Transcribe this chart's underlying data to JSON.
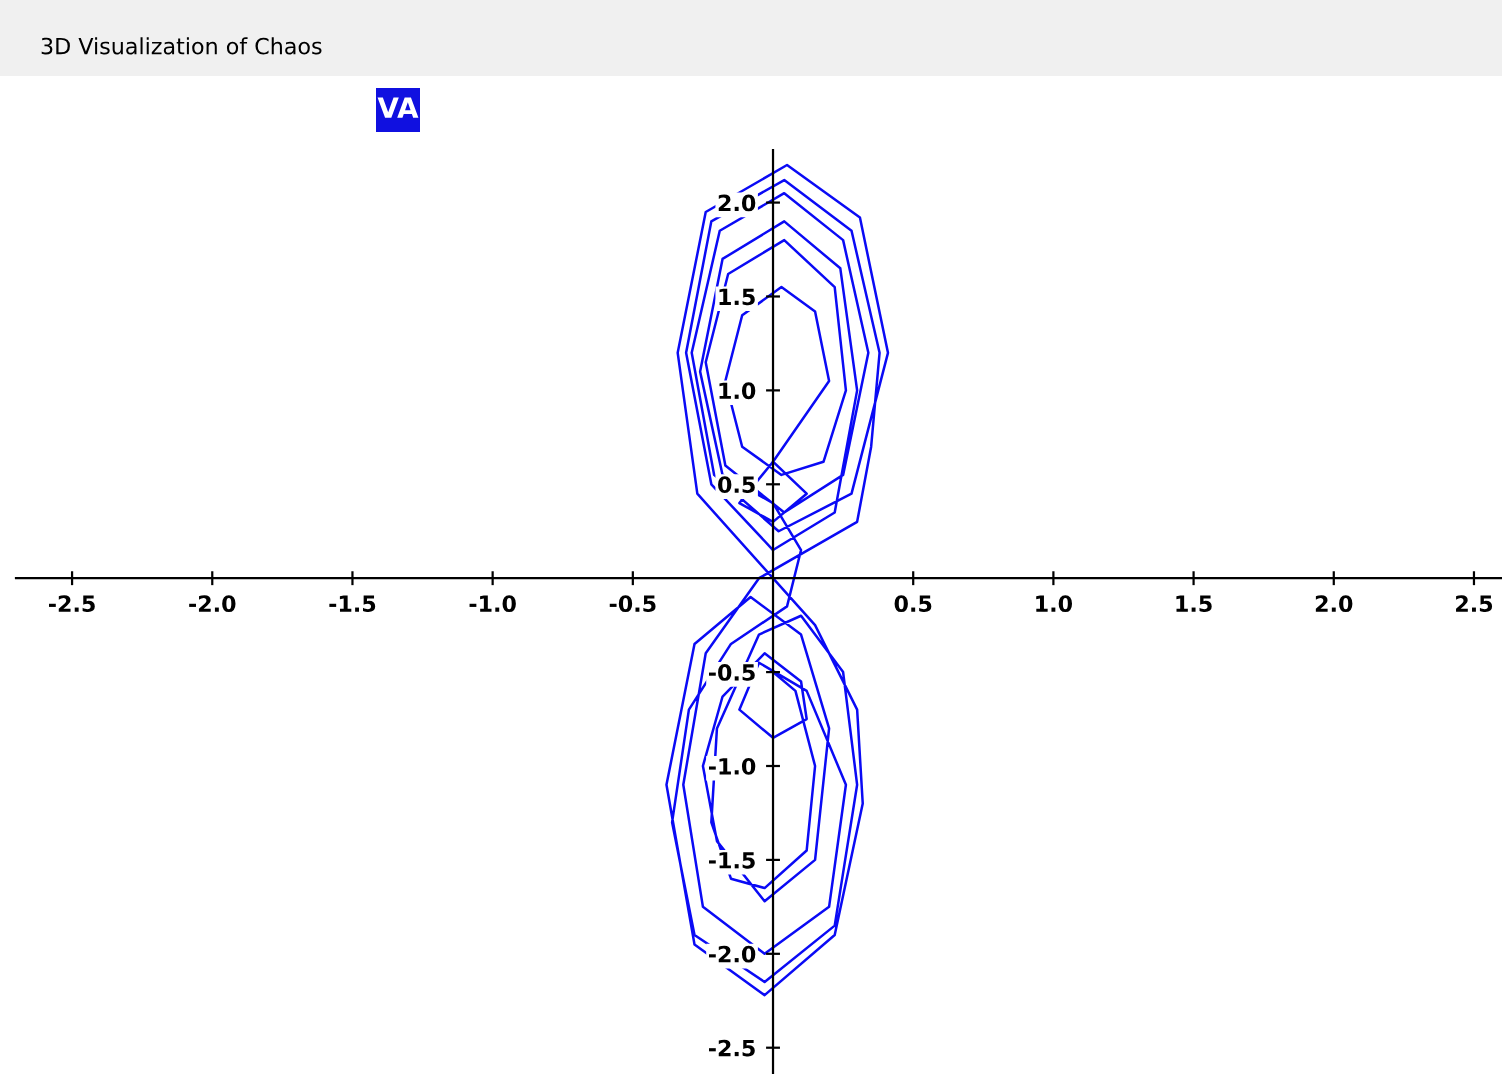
{
  "chart_data": {
    "type": "line",
    "title": "3D Visualization of Chaos",
    "annotations": [
      "VA"
    ],
    "x": [
      0.0,
      0.12,
      0.0,
      -0.12,
      0.0,
      0.2,
      0.15,
      0.03,
      -0.11,
      -0.17,
      -0.11,
      0.03,
      0.18,
      0.26,
      0.22,
      0.04,
      -0.16,
      -0.24,
      -0.17,
      0.04,
      0.25,
      0.34,
      0.25,
      0.04,
      -0.19,
      -0.29,
      -0.21,
      0.02,
      0.28,
      0.41,
      0.31,
      0.05,
      -0.24,
      -0.34,
      -0.27,
      0.15,
      0.3,
      0.32,
      0.22,
      -0.03,
      -0.28,
      -0.38,
      -0.28,
      -0.08,
      0.1,
      0.2,
      0.15,
      -0.03,
      -0.2,
      -0.25,
      -0.18,
      -0.03,
      0.1,
      0.12,
      0.0,
      -0.12,
      -0.05,
      0.12,
      0.26,
      0.2,
      -0.03,
      -0.25,
      -0.32,
      -0.24,
      -0.05,
      0.3,
      0.35,
      0.38,
      0.28,
      0.04,
      -0.22,
      -0.31,
      -0.22,
      0.0,
      0.22,
      0.3,
      0.24,
      0.04,
      -0.18,
      -0.26,
      -0.18,
      0.0,
      0.1,
      0.05,
      -0.15,
      -0.3,
      -0.36,
      -0.28,
      -0.03,
      0.22,
      0.3,
      0.25,
      0.1,
      -0.05,
      -0.2,
      -0.22,
      -0.15,
      -0.03,
      0.12,
      0.15,
      0.08,
      0.0
    ],
    "series": [
      {
        "color": "#0a0af5",
        "values": [
          0.62,
          0.45,
          0.3,
          0.4,
          0.62,
          1.05,
          1.42,
          1.55,
          1.4,
          1.05,
          0.7,
          0.55,
          0.62,
          1.0,
          1.55,
          1.8,
          1.62,
          1.15,
          0.6,
          0.35,
          0.55,
          1.2,
          1.8,
          2.05,
          1.85,
          1.2,
          0.55,
          0.25,
          0.45,
          1.2,
          1.92,
          2.2,
          1.95,
          1.2,
          0.45,
          -0.25,
          -0.7,
          -1.2,
          -1.9,
          -2.22,
          -1.95,
          -1.1,
          -0.35,
          -0.1,
          -0.3,
          -0.8,
          -1.5,
          -1.72,
          -1.4,
          -1.0,
          -0.63,
          -0.4,
          -0.55,
          -0.75,
          -0.85,
          -0.7,
          -0.45,
          -0.6,
          -1.1,
          -1.75,
          -2.0,
          -1.75,
          -1.1,
          -0.4,
          0.0,
          0.3,
          0.7,
          1.2,
          1.85,
          2.12,
          1.9,
          1.2,
          0.5,
          0.15,
          0.35,
          1.0,
          1.65,
          1.9,
          1.7,
          1.1,
          0.55,
          0.4,
          0.15,
          -0.15,
          -0.35,
          -0.7,
          -1.3,
          -1.9,
          -2.15,
          -1.85,
          -1.1,
          -0.5,
          -0.2,
          -0.3,
          -0.8,
          -1.3,
          -1.6,
          -1.65,
          -1.45,
          -1.0,
          -0.6,
          -0.5
        ]
      }
    ],
    "xlim": [
      -2.7,
      2.6
    ],
    "ylim": [
      -2.64,
      2.28
    ],
    "xticks": [
      {
        "value": -2.5,
        "label": "-2.5"
      },
      {
        "value": -2.0,
        "label": "-2.0"
      },
      {
        "value": -1.5,
        "label": "-1.5"
      },
      {
        "value": -1.0,
        "label": "-1.0"
      },
      {
        "value": -0.5,
        "label": "-0.5"
      },
      {
        "value": 0.5,
        "label": "0.5"
      },
      {
        "value": 1.0,
        "label": "1.0"
      },
      {
        "value": 1.5,
        "label": "1.5"
      },
      {
        "value": 2.0,
        "label": "2.0"
      },
      {
        "value": 2.5,
        "label": "2.5"
      }
    ],
    "yticks": [
      {
        "value": 2.0,
        "label": "2.0"
      },
      {
        "value": 1.5,
        "label": "1.5"
      },
      {
        "value": 1.0,
        "label": "1.0"
      },
      {
        "value": 0.5,
        "label": "0.5"
      },
      {
        "value": -0.5,
        "label": "-0.5"
      },
      {
        "value": -1.0,
        "label": "-1.0"
      },
      {
        "value": -1.5,
        "label": "-1.5"
      },
      {
        "value": -2.0,
        "label": "-2.0"
      },
      {
        "value": -2.5,
        "label": "-2.5"
      }
    ],
    "grid": false,
    "marker": "none",
    "line_style": "solid"
  }
}
